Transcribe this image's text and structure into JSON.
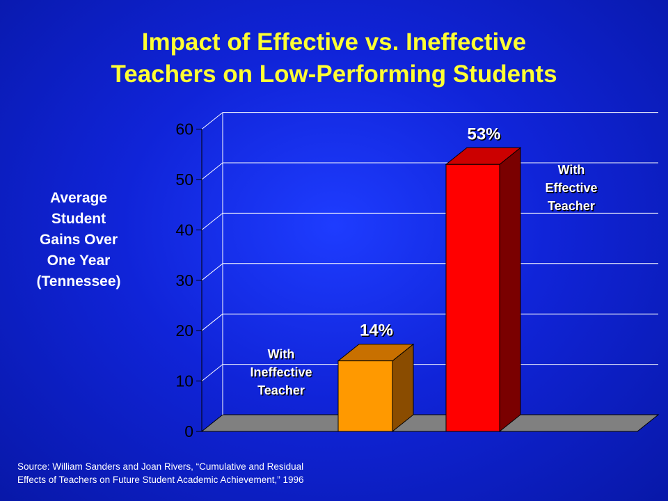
{
  "title_line1": "Impact of Effective vs. Ineffective",
  "title_line2": "Teachers on Low-Performing Students",
  "ylabel_lines": [
    "Average",
    "Student",
    "Gains Over",
    "One Year",
    "(Tennessee)"
  ],
  "source_line1": "Source: William Sanders and Joan Rivers, “Cumulative and Residual",
  "source_line2": "Effects of Teachers on Future Student Academic Achievement,” 1996",
  "chart_data": {
    "type": "bar",
    "categories": [
      "With Ineffective Teacher",
      "With Effective Teacher"
    ],
    "values": [
      14,
      53
    ],
    "data_labels": [
      "14%",
      "53%"
    ],
    "ylim": [
      0,
      60
    ],
    "yticks": [
      0,
      10,
      20,
      30,
      40,
      50,
      60
    ],
    "grid": true,
    "style": "3d",
    "annotations": [
      {
        "lines": [
          "With",
          "Ineffective",
          "Teacher"
        ]
      },
      {
        "lines": [
          "With",
          "Effective",
          "Teacher"
        ]
      }
    ],
    "colors": {
      "bar1_front": "#ff9900",
      "bar1_top": "#c87000",
      "bar1_side": "#8a4c00",
      "bar2_front": "#ff0000",
      "bar2_top": "#cc0000",
      "bar2_side": "#7a0000",
      "floor": "#808080",
      "label": "#ffffff",
      "text_shadow": "#000000"
    }
  }
}
